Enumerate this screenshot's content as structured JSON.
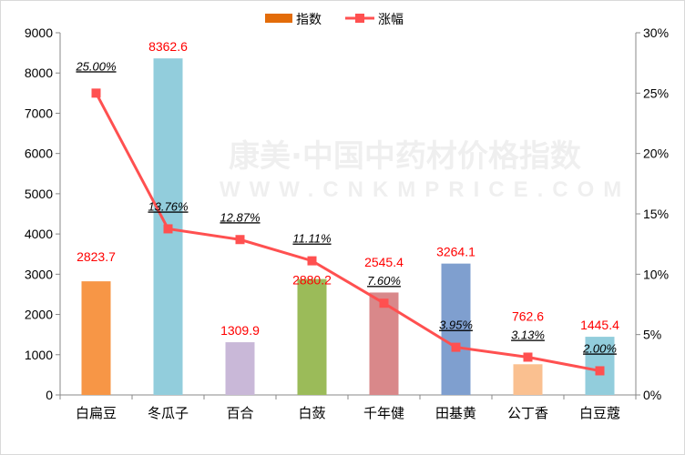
{
  "chart_data": {
    "type": "bar+line",
    "categories": [
      "白扁豆",
      "冬瓜子",
      "百合",
      "白蔹",
      "千年健",
      "田基黄",
      "公丁香",
      "白豆蔻"
    ],
    "series": [
      {
        "name": "指数",
        "type": "bar",
        "axis": "left",
        "values": [
          2823.7,
          8362.6,
          1309.9,
          2880.2,
          2545.4,
          3264.1,
          762.6,
          1445.4
        ],
        "labels": [
          "2823.7",
          "8362.6",
          "1309.9",
          "2880.2",
          "2545.4",
          "3264.1",
          "762.6",
          "1445.4"
        ],
        "colors": [
          "#f79646",
          "#92cddc",
          "#c9b8d8",
          "#9bbb59",
          "#d9888a",
          "#7f9fcf",
          "#fac090",
          "#92cddc"
        ],
        "legend_color": "#e36c09"
      },
      {
        "name": "涨幅",
        "type": "line",
        "axis": "right",
        "values": [
          25.0,
          13.76,
          12.87,
          11.11,
          7.6,
          3.95,
          3.13,
          2.0
        ],
        "labels": [
          "25.00%",
          "13.76%",
          "12.87%",
          "11.11%",
          "7.60%",
          "3.95%",
          "3.13%",
          "2.00%"
        ],
        "color": "#ff5050"
      }
    ],
    "left_axis": {
      "ylim": [
        0,
        9000
      ],
      "ticks": [
        "0",
        "1000",
        "2000",
        "3000",
        "4000",
        "5000",
        "6000",
        "7000",
        "8000",
        "9000"
      ]
    },
    "right_axis": {
      "ylim": [
        0,
        30
      ],
      "ticks": [
        "0%",
        "5%",
        "10%",
        "15%",
        "20%",
        "25%",
        "30%"
      ]
    },
    "grid": false,
    "legend_position": "top",
    "watermark": {
      "text": "康美·中国中药材价格指数",
      "url_text": "WWW.CNKMPRICE.COM"
    }
  }
}
